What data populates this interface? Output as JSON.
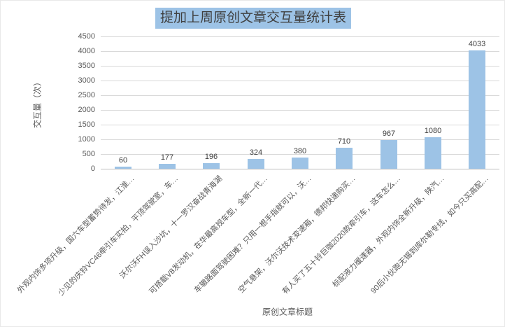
{
  "chart_data": {
    "type": "bar",
    "title": "提加上周原创文章交互量统计表",
    "xlabel": "原创文章标题",
    "ylabel": "交互量（次）",
    "categories": [
      "外观内饰多项升级，国六车型蓄势待发，江淮…",
      "少见的庆铃VC46牵引车实拍，平顶驾驶室，车…",
      "沃尔沃FH误入沙坑，十一罗汉奋战青海湖",
      "可搭载V8发动机，在华最高规车型，全新一代…",
      "车辙路面驾驶困难？只用一根手指就可以，沃…",
      "空气悬架，沃尔沃技术变速箱，德邦快递购买…",
      "有人买了五十铃巨咖2020款牵引车，这车怎么…",
      "标配液力缓速器，外观内饰全新升级，陕汽…",
      "90后小伙跑无锡到库尔勒专线，如今只买高配…"
    ],
    "values": [
      60,
      177,
      196,
      324,
      380,
      710,
      967,
      1080,
      4033
    ],
    "value_labels": [
      "60",
      "177",
      "196",
      "324",
      "380",
      "710",
      "967",
      "1080",
      "4033"
    ],
    "ylim": [
      0,
      4500
    ],
    "ytick_step": 500,
    "ytick_labels": [
      "4500",
      "4000",
      "3500",
      "3000",
      "2500",
      "2000",
      "1500",
      "1000",
      "500",
      "0"
    ],
    "grid": true,
    "legend": false,
    "colors": {
      "bar_fill": "#9DC3E6",
      "title_highlight": "#9DC3E6",
      "title_text": "#404040",
      "gridline": "#D9D9D9",
      "axis_line": "#BFBFBF",
      "tick_label": "#595959",
      "axis_title": "#595959",
      "value_label": "#404040"
    }
  }
}
